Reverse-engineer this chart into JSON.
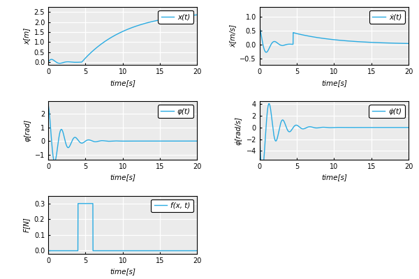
{
  "line_color": "#29abe2",
  "bg_color": "#ebebeb",
  "xlim": [
    0,
    20
  ],
  "time_label": "time[s]",
  "plots": [
    {
      "ylabel": "x[m]",
      "legend": "x(t)",
      "ylim": [
        -0.15,
        2.75
      ],
      "yticks": [
        0.0,
        0.5,
        1.0,
        1.5,
        2.0,
        2.5
      ]
    },
    {
      "ylabel": "ẋ[m/s]",
      "legend": "ẋ(t)",
      "ylim": [
        -0.75,
        1.35
      ],
      "yticks": [
        -0.5,
        0.0,
        0.5,
        1.0
      ]
    },
    {
      "ylabel": "φ[rad]",
      "legend": "φ(t)",
      "ylim": [
        -1.35,
        2.9
      ],
      "yticks": [
        -1,
        0,
        1,
        2
      ]
    },
    {
      "ylabel": "φ̇[rad/s]",
      "legend": "φ̇(t)",
      "ylim": [
        -5.5,
        4.5
      ],
      "yticks": [
        -4,
        -2,
        0,
        2,
        4
      ]
    },
    {
      "ylabel": "F[N]",
      "legend": "f(x, t)",
      "ylim": [
        -0.02,
        0.35
      ],
      "yticks": [
        0.0,
        0.1,
        0.2,
        0.3
      ]
    }
  ]
}
